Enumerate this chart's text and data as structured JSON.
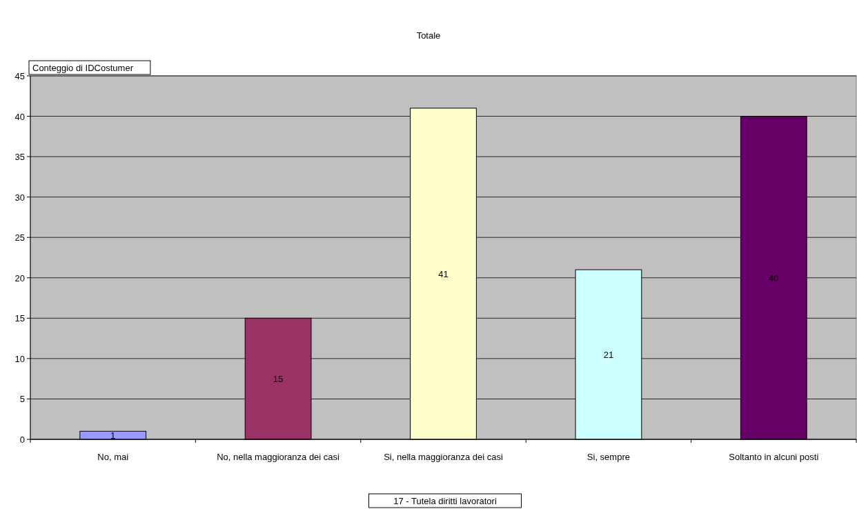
{
  "chart_data": {
    "type": "bar",
    "title": "Totale",
    "ylabel": "Conteggio di IDCostumer",
    "xlabel": "17 - Tutela diritti lavoratori",
    "categories": [
      "No, mai",
      "No, nella maggioranza dei casi",
      "Si, nella maggioranza dei casi",
      "Si, sempre",
      "Soltanto in alcuni posti"
    ],
    "values": [
      1,
      15,
      41,
      21,
      40
    ],
    "colors": [
      "#9999ff",
      "#993366",
      "#ffffcc",
      "#ccffff",
      "#660066"
    ],
    "ylim": [
      0,
      45
    ],
    "yticks": [
      0,
      5,
      10,
      15,
      20,
      25,
      30,
      35,
      40,
      45
    ],
    "grid": "y",
    "data_labels": true
  }
}
